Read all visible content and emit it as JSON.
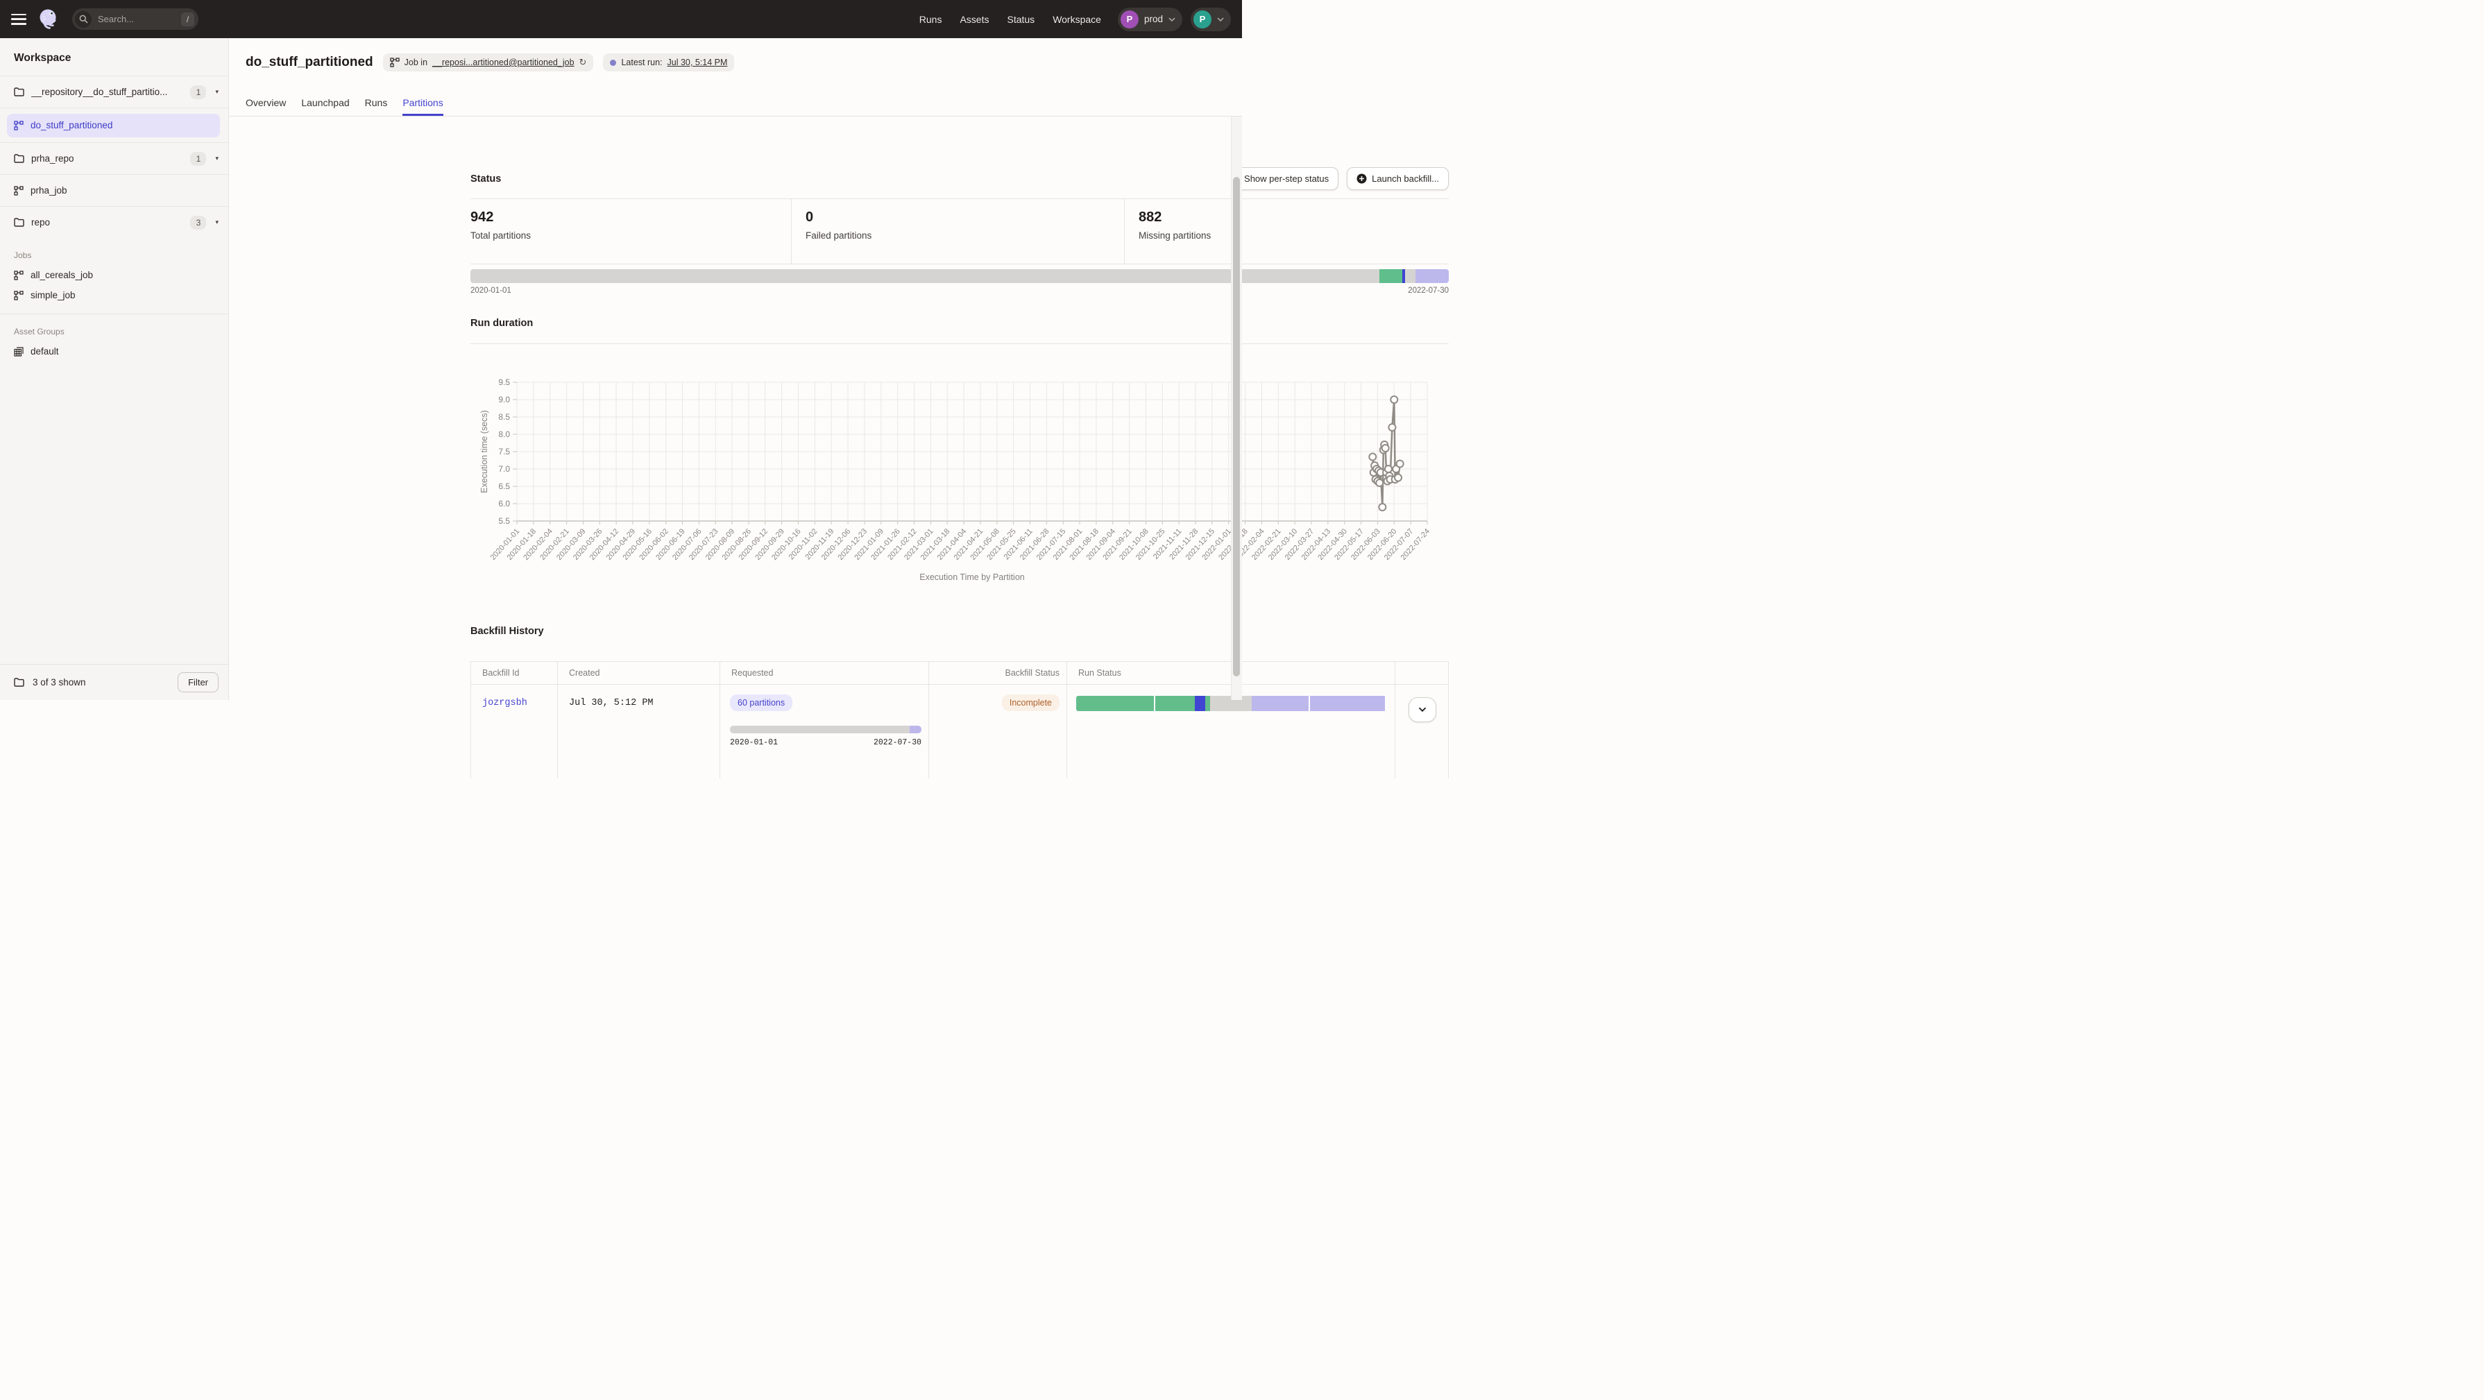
{
  "navbar": {
    "search_placeholder": "Search...",
    "search_shortcut": "/",
    "links": [
      "Runs",
      "Assets",
      "Status",
      "Workspace"
    ],
    "deployment": {
      "initial": "P",
      "label": "prod",
      "avatar_color": "#A04FB5"
    },
    "user": {
      "initial": "P",
      "avatar_color": "#2AA18F"
    }
  },
  "sidebar": {
    "title": "Workspace",
    "repos": [
      {
        "type": "folder",
        "label": "__repository__do_stuff_partitio...",
        "count": "1"
      },
      {
        "type": "job",
        "label": "do_stuff_partitioned",
        "selected": true
      },
      {
        "type": "folder",
        "label": "prha_repo",
        "count": "1"
      },
      {
        "type": "job",
        "label": "prha_job",
        "selected": false
      },
      {
        "type": "folder",
        "label": "repo",
        "count": "3"
      }
    ],
    "jobs_label": "Jobs",
    "jobs": [
      "all_cereals_job",
      "simple_job"
    ],
    "asset_groups_label": "Asset Groups",
    "asset_groups": [
      "default"
    ],
    "footer": {
      "count_label": "3 of 3 shown",
      "filter_label": "Filter"
    }
  },
  "header": {
    "title": "do_stuff_partitioned",
    "job_tag": {
      "prefix": "Job in",
      "link": "__reposi...artitioned@partitioned_job"
    },
    "latest_run": {
      "label": "Latest run:",
      "value": "Jul 30, 5:14 PM"
    }
  },
  "tabs": [
    {
      "label": "Overview",
      "active": false
    },
    {
      "label": "Launchpad",
      "active": false
    },
    {
      "label": "Runs",
      "active": false
    },
    {
      "label": "Partitions",
      "active": true
    }
  ],
  "status_section": {
    "heading": "Status",
    "show_btn": "Show per-step status",
    "launch_btn": "Launch backfill...",
    "stats": [
      {
        "value": "942",
        "label": "Total partitions"
      },
      {
        "value": "0",
        "label": "Failed partitions"
      },
      {
        "value": "882",
        "label": "Missing partitions"
      }
    ],
    "partition_bar": {
      "start": "2020-01-01",
      "end": "2022-07-30",
      "segments": [
        {
          "status": "missing",
          "color": "#D6D4D2",
          "pct": 92.9
        },
        {
          "status": "success",
          "color": "#5FBE8B",
          "pct": 2.35
        },
        {
          "status": "in_progress",
          "color": "#4045D2",
          "pct": 0.28
        },
        {
          "status": "missing",
          "color": "#D6D4D2",
          "pct": 1.05
        },
        {
          "status": "queued",
          "color": "#BCB8EC",
          "pct": 3.42
        }
      ]
    }
  },
  "run_duration": {
    "heading": "Run duration"
  },
  "chart_data": {
    "type": "line",
    "title": "Run duration",
    "xlabel": "Execution Time by Partition",
    "ylabel": "Execution time (secs)",
    "ylim": [
      5.5,
      9.5
    ],
    "yticks": [
      9.5,
      9.0,
      8.5,
      8.0,
      7.5,
      7.0,
      6.5,
      6.0,
      5.5
    ],
    "grid": true,
    "marker": "open-circle",
    "line_color": "#8F8B85",
    "xticks": [
      "2020-01-01",
      "2020-01-18",
      "2020-02-04",
      "2020-02-21",
      "2020-03-09",
      "2020-03-26",
      "2020-04-12",
      "2020-04-29",
      "2020-05-16",
      "2020-06-02",
      "2020-06-19",
      "2020-07-06",
      "2020-07-23",
      "2020-08-09",
      "2020-08-26",
      "2020-09-12",
      "2020-09-29",
      "2020-10-16",
      "2020-11-02",
      "2020-11-19",
      "2020-12-06",
      "2020-12-23",
      "2021-01-09",
      "2021-01-26",
      "2021-02-12",
      "2021-03-01",
      "2021-03-18",
      "2021-04-04",
      "2021-04-21",
      "2021-05-08",
      "2021-05-25",
      "2021-06-11",
      "2021-06-28",
      "2021-07-15",
      "2021-08-01",
      "2021-08-18",
      "2021-09-04",
      "2021-09-21",
      "2021-10-08",
      "2021-10-25",
      "2021-11-11",
      "2021-11-28",
      "2021-12-15",
      "2022-01-01",
      "2022-01-18",
      "2022-02-04",
      "2022-02-21",
      "2022-03-10",
      "2022-03-27",
      "2022-04-13",
      "2022-04-30",
      "2022-05-17",
      "2022-06-03",
      "2022-06-20",
      "2022-07-07",
      "2022-07-24"
    ],
    "points": [
      {
        "partition": "2022-05-29",
        "t": 51.7,
        "secs": 7.35
      },
      {
        "partition": "2022-05-30",
        "t": 51.76,
        "secs": 6.9
      },
      {
        "partition": "2022-05-31",
        "t": 51.82,
        "secs": 7.1
      },
      {
        "partition": "2022-06-01",
        "t": 51.88,
        "secs": 6.7
      },
      {
        "partition": "2022-06-02",
        "t": 51.94,
        "secs": 7.0
      },
      {
        "partition": "2022-06-03",
        "t": 52.0,
        "secs": 6.65
      },
      {
        "partition": "2022-06-04",
        "t": 52.06,
        "secs": 6.95
      },
      {
        "partition": "2022-06-05",
        "t": 52.12,
        "secs": 6.6
      },
      {
        "partition": "2022-06-06",
        "t": 52.18,
        "secs": 6.9
      },
      {
        "partition": "2022-06-08",
        "t": 52.29,
        "secs": 5.9
      },
      {
        "partition": "2022-06-09",
        "t": 52.35,
        "secs": 7.55
      },
      {
        "partition": "2022-06-10",
        "t": 52.41,
        "secs": 7.7
      },
      {
        "partition": "2022-06-11",
        "t": 52.47,
        "secs": 7.6
      },
      {
        "partition": "2022-06-12",
        "t": 52.53,
        "secs": 6.9
      },
      {
        "partition": "2022-06-13",
        "t": 52.59,
        "secs": 6.65
      },
      {
        "partition": "2022-06-14",
        "t": 52.65,
        "secs": 7.0
      },
      {
        "partition": "2022-06-15",
        "t": 52.71,
        "secs": 6.8
      },
      {
        "partition": "2022-06-16",
        "t": 52.76,
        "secs": 6.7
      },
      {
        "partition": "2022-06-18",
        "t": 52.88,
        "secs": 8.2
      },
      {
        "partition": "2022-06-20",
        "t": 53.0,
        "secs": 9.0
      },
      {
        "partition": "2022-06-21",
        "t": 53.06,
        "secs": 6.7
      },
      {
        "partition": "2022-06-22",
        "t": 53.12,
        "secs": 7.0
      },
      {
        "partition": "2022-06-24",
        "t": 53.24,
        "secs": 6.75
      },
      {
        "partition": "2022-06-26",
        "t": 53.35,
        "secs": 7.15
      }
    ]
  },
  "backfill_history": {
    "heading": "Backfill History",
    "columns": [
      "Backfill Id",
      "Created",
      "Requested",
      "Backfill Status",
      "Run Status",
      ""
    ],
    "rows": [
      {
        "id": "jozrgsbh",
        "created": "Jul 30, 5:12 PM",
        "requested_label": "60 partitions",
        "range_start": "2020-01-01",
        "range_end": "2022-07-30",
        "status": "Incomplete",
        "requested_segments": [
          {
            "status": "other",
            "color": "#D6D4D2",
            "pct": 94.0
          },
          {
            "status": "queued",
            "color": "#BCB8EC",
            "pct": 6.0
          }
        ],
        "run_segments": [
          {
            "status": "success",
            "color": "#63BD8B",
            "pct": 25.0
          },
          {
            "status": "success",
            "color": "#63BD8B",
            "pct": 13.2,
            "gap": true
          },
          {
            "status": "in_progress",
            "color": "#4045D2",
            "pct": 3.5
          },
          {
            "status": "success",
            "color": "#63BD8B",
            "pct": 1.5
          },
          {
            "status": "not_started",
            "color": "#D6D4D1",
            "pct": 13.3
          },
          {
            "status": "queued",
            "color": "#BCB8EC",
            "pct": 18.4
          },
          {
            "status": "queued",
            "color": "#BCB8EC",
            "pct": 24.6,
            "gap": true
          }
        ]
      }
    ]
  },
  "colors": {
    "accent": "#4543CE",
    "success_green": "#63BD8B",
    "queued_lavender": "#BCB8EC",
    "in_progress_blue": "#4045D2",
    "missing_gray": "#D6D4D2",
    "navbar_bg": "#242120"
  }
}
